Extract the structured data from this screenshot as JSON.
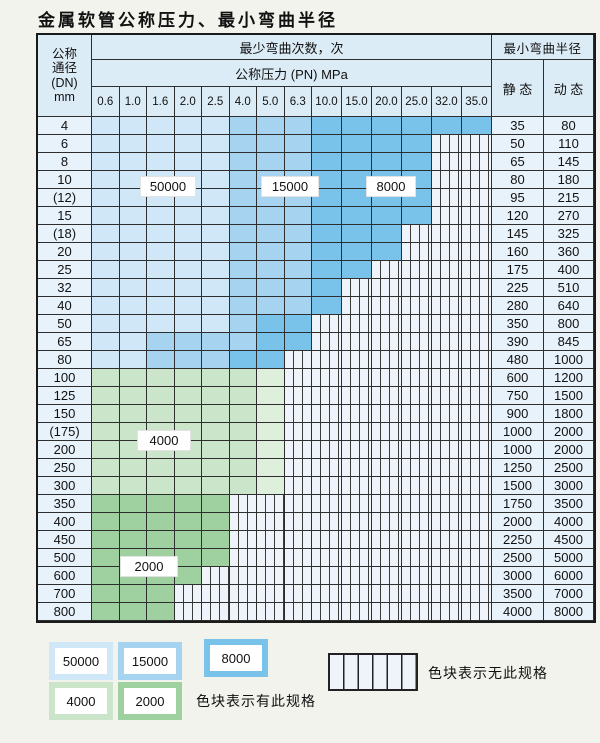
{
  "title": "金属软管公称压力、最小弯曲半径",
  "header": {
    "dn": "公称\n通径\n(DN)\nmm",
    "cycles": "最少弯曲次数，次",
    "pressure": "公称压力 (PN) MPa",
    "radius": "最小弯曲半径",
    "static": "静 态",
    "dynamic": "动 态"
  },
  "pressures": [
    "0.6",
    "1.0",
    "1.6",
    "2.0",
    "2.5",
    "4.0",
    "5.0",
    "6.3",
    "10.0",
    "15.0",
    "20.0",
    "25.0",
    "32.0",
    "35.0"
  ],
  "cell_legend_map": {
    "L": "50000",
    "M": "15000",
    "D": "8000",
    "G": "4000",
    "g": "4000",
    "E": "2000",
    "X": "no-spec"
  },
  "rows": [
    {
      "dn": "4",
      "cells": "LLLLLMMMDDDDDD",
      "static": "35",
      "dynamic": "80"
    },
    {
      "dn": "6",
      "cells": "LLLLLMMMDDDDXX",
      "static": "50",
      "dynamic": "110"
    },
    {
      "dn": "8",
      "cells": "LLLLLMMMDDDDXX",
      "static": "65",
      "dynamic": "145"
    },
    {
      "dn": "10",
      "cells": "LLLLLMMMDDDDXX",
      "static": "80",
      "dynamic": "180"
    },
    {
      "dn": "(12)",
      "cells": "LLLLLMMMDDDDXX",
      "static": "95",
      "dynamic": "215"
    },
    {
      "dn": "15",
      "cells": "LLLLLMMMDDDDXX",
      "static": "120",
      "dynamic": "270"
    },
    {
      "dn": "(18)",
      "cells": "LLLLLMMMDDDXXX",
      "static": "145",
      "dynamic": "325"
    },
    {
      "dn": "20",
      "cells": "LLLLLMMMDDDXXX",
      "static": "160",
      "dynamic": "360"
    },
    {
      "dn": "25",
      "cells": "LLLLLMMMDDXXXX",
      "static": "175",
      "dynamic": "400"
    },
    {
      "dn": "32",
      "cells": "LLLLLMMMDXXXXX",
      "static": "225",
      "dynamic": "510"
    },
    {
      "dn": "40",
      "cells": "LLLLLMMMDXXXXX",
      "static": "280",
      "dynamic": "640"
    },
    {
      "dn": "50",
      "cells": "LLLLLMDDXXXXXX",
      "static": "350",
      "dynamic": "800"
    },
    {
      "dn": "65",
      "cells": "LLMMMMDDXXXXXX",
      "static": "390",
      "dynamic": "845"
    },
    {
      "dn": "80",
      "cells": "LLMMMDDXXXXXXX",
      "static": "480",
      "dynamic": "1000"
    },
    {
      "dn": "100",
      "cells": "GGGGGGgXXXXXXX",
      "static": "600",
      "dynamic": "1200"
    },
    {
      "dn": "125",
      "cells": "GGGGGGgXXXXXXX",
      "static": "750",
      "dynamic": "1500"
    },
    {
      "dn": "150",
      "cells": "GGGGGGgXXXXXXX",
      "static": "900",
      "dynamic": "1800"
    },
    {
      "dn": "(175)",
      "cells": "GGGGGGgXXXXXXX",
      "static": "1000",
      "dynamic": "2000"
    },
    {
      "dn": "200",
      "cells": "GGGGGGgXXXXXXX",
      "static": "1000",
      "dynamic": "2000"
    },
    {
      "dn": "250",
      "cells": "GGGGGGgXXXXXXX",
      "static": "1250",
      "dynamic": "2500"
    },
    {
      "dn": "300",
      "cells": "GGGGGGgXXXXXXX",
      "static": "1500",
      "dynamic": "3000"
    },
    {
      "dn": "350",
      "cells": "EEEEEXXXXXXXXX",
      "static": "1750",
      "dynamic": "3500"
    },
    {
      "dn": "400",
      "cells": "EEEEEXXXXXXXXX",
      "static": "2000",
      "dynamic": "4000"
    },
    {
      "dn": "450",
      "cells": "EEEEEXXXXXXXXX",
      "static": "2250",
      "dynamic": "4500"
    },
    {
      "dn": "500",
      "cells": "EEEEEXXXXXXXXX",
      "static": "2500",
      "dynamic": "5000"
    },
    {
      "dn": "600",
      "cells": "EEEEXXXXXXXXXX",
      "static": "3000",
      "dynamic": "6000"
    },
    {
      "dn": "700",
      "cells": "EEEXXXXXXXXXXX",
      "static": "3500",
      "dynamic": "7000"
    },
    {
      "dn": "800",
      "cells": "EEEXXXXXXXXXXX",
      "static": "4000",
      "dynamic": "8000"
    }
  ],
  "zone_labels": [
    {
      "text": "50000"
    },
    {
      "text": "15000"
    },
    {
      "text": "8000"
    },
    {
      "text": "4000"
    },
    {
      "text": "2000"
    }
  ],
  "legend": {
    "items": [
      {
        "label": "50000"
      },
      {
        "label": "15000"
      },
      {
        "label": "8000"
      },
      {
        "label": "4000"
      },
      {
        "label": "2000"
      }
    ],
    "has_spec_note": "色块表示有此规格",
    "no_spec_note": "色块表示无此规格"
  },
  "colors": {
    "c50000": "#cfe7f7",
    "c15000": "#a6d3ef",
    "c8000": "#79c3ea",
    "c4000": "#cbe5ca",
    "c4000l": "#def0dc",
    "c2000": "#9ed0a0",
    "stripebg": "#eef4f9",
    "headerbg": "#dcecf7",
    "sidebg": "#e8f2fb",
    "grid": "#2e2e2e",
    "pagebg": "#f1f3ec"
  }
}
